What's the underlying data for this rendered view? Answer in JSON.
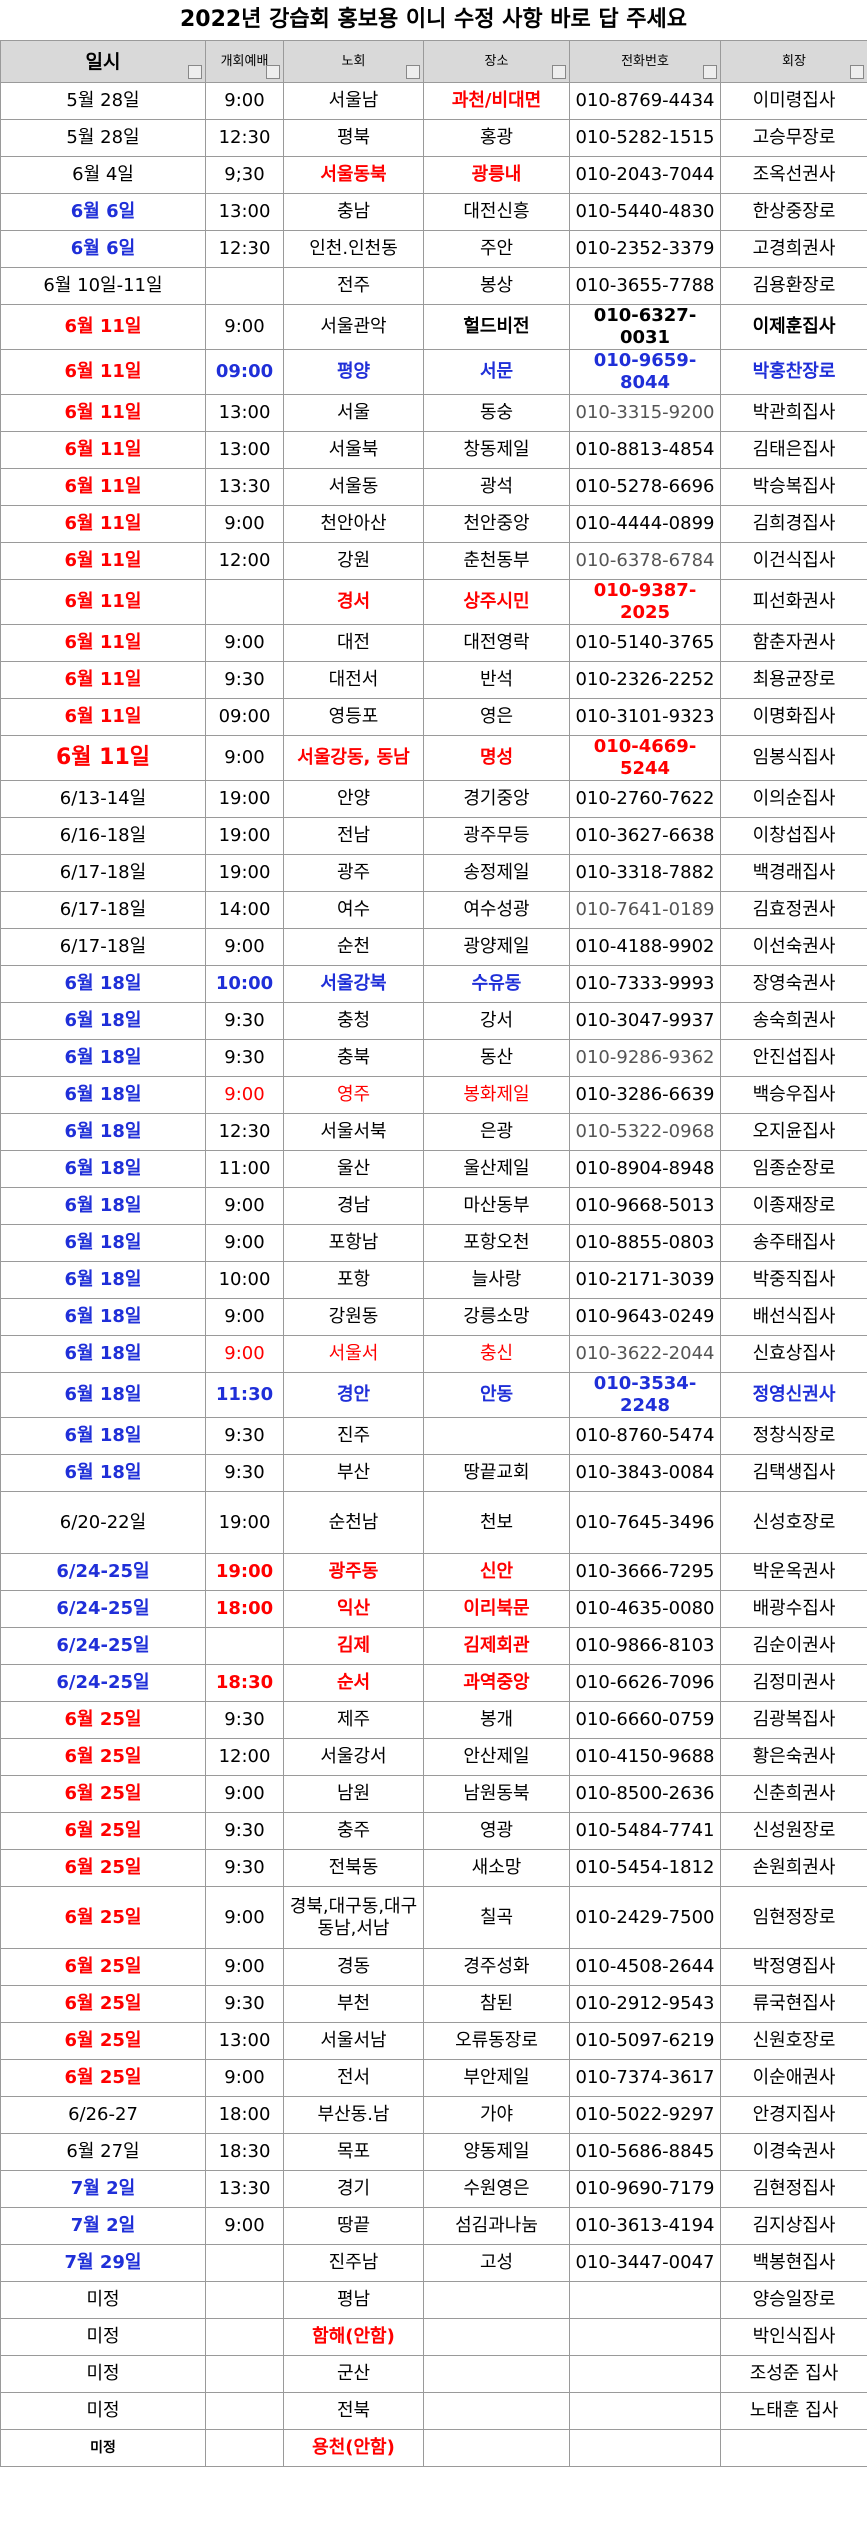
{
  "title": "2022년 강습회 홍보용 이니 수정 사항 바로 답 주세요",
  "table": {
    "header": [
      "일시",
      "개회예배",
      "노회",
      "장소",
      "전화번호",
      "회장"
    ],
    "rows": [
      [
        "5월 28일",
        "9:00",
        "서울남",
        "과천/비대면",
        "010-8769-4434",
        "이미령집사"
      ],
      [
        "5월 28일",
        "12:30",
        "평북",
        "홍광",
        "010-5282-1515",
        "고승무장로"
      ],
      [
        "6월 4일",
        "9;30",
        "서울동북",
        "광릉내",
        "010-2043-7044",
        "조옥선권사"
      ],
      [
        "6월 6일",
        "13:00",
        "충남",
        "대전신흥",
        "010-5440-4830",
        "한상중장로"
      ],
      [
        "6월 6일",
        "12:30",
        "인천.인천동",
        "주안",
        "010-2352-3379",
        "고경희권사"
      ],
      [
        "6월 10일-11일",
        null,
        "전주",
        "봉상",
        "010-3655-7788",
        "김용환장로"
      ],
      [
        "6월 11일",
        "9:00",
        "서울관악",
        "헐드비전",
        "010-6327-0031",
        "이제훈집사"
      ],
      [
        "6월 11일",
        "09:00",
        "평양",
        "서문",
        "010-9659-8044",
        "박홍찬장로"
      ],
      [
        "6월 11일",
        "13:00",
        "서울",
        "동숭",
        "010-3315-9200",
        "박관희집사"
      ],
      [
        "6월 11일",
        "13:00",
        "서울북",
        "창동제일",
        "010-8813-4854",
        "김태은집사"
      ],
      [
        "6월 11일",
        "13:30",
        "서울동",
        "광석",
        "010-5278-6696",
        "박승복집사"
      ],
      [
        "6월 11일",
        "9:00",
        "천안아산",
        "천안중앙",
        "010-4444-0899",
        "김희경집사"
      ],
      [
        "6월 11일",
        "12:00",
        "강원",
        "춘천동부",
        "010-6378-6784",
        "이건식집사"
      ],
      [
        "6월 11일",
        null,
        "경서",
        "상주시민",
        "010-9387-2025",
        "피선화권사"
      ],
      [
        "6월 11일",
        "9:00",
        "대전",
        "대전영락",
        "010-5140-3765",
        "함춘자권사"
      ],
      [
        "6월 11일",
        "9:30",
        "대전서",
        "반석",
        "010-2326-2252",
        "최용균장로"
      ],
      [
        "6월 11일",
        "09:00",
        "영등포",
        "영은",
        "010-3101-9323",
        "이명화집사"
      ],
      [
        "6월 11일",
        "9:00",
        "서울강동, 동남",
        "명성",
        "010-4669-5244",
        "임봉식집사"
      ],
      [
        "6/13-14일",
        "19:00",
        "안양",
        "경기중앙",
        "010-2760-7622",
        "이의순집사"
      ],
      [
        "6/16-18일",
        "19:00",
        "전남",
        "광주무등",
        "010-3627-6638",
        "이창섭집사"
      ],
      [
        "6/17-18일",
        "19:00",
        "광주",
        "송정제일",
        "010-3318-7882",
        "백경래집사"
      ],
      [
        "6/17-18일",
        "14:00",
        "여수",
        "여수성광",
        "010-7641-0189",
        "김효정권사"
      ],
      [
        "6/17-18일",
        "9:00",
        "순천",
        "광양제일",
        "010-4188-9902",
        "이선숙권사"
      ],
      [
        "6월 18일",
        "10:00",
        "서울강북",
        "수유동",
        "010-7333-9993",
        "장영숙권사"
      ],
      [
        "6월 18일",
        "9:30",
        "충청",
        "강서",
        "010-3047-9937",
        "송숙희권사"
      ],
      [
        "6월 18일",
        "9:30",
        "충북",
        "동산",
        "010-9286-9362",
        "안진섭집사"
      ],
      [
        "6월 18일",
        "9:00",
        "영주",
        "봉화제일",
        "010-3286-6639",
        "백승우집사"
      ],
      [
        "6월 18일",
        "12:30",
        "서울서북",
        "은광",
        "010-5322-0968",
        "오지윤집사"
      ],
      [
        "6월 18일",
        "11:00",
        "울산",
        "울산제일",
        "010-8904-8948",
        "임종순장로"
      ],
      [
        "6월 18일",
        "9:00",
        "경남",
        "마산동부",
        "010-9668-5013",
        "이종재장로"
      ],
      [
        "6월 18일",
        "9:00",
        "포항남",
        "포항오천",
        "010-8855-0803",
        "송주태집사"
      ],
      [
        "6월 18일",
        "10:00",
        "포항",
        "늘사랑",
        "010-2171-3039",
        "박중직집사"
      ],
      [
        "6월 18일",
        "9:00",
        "강원동",
        "강릉소망",
        "010-9643-0249",
        "배선식집사"
      ],
      [
        "6월 18일",
        "9:00",
        "서울서",
        "충신",
        "010-3622-2044",
        "신효상집사"
      ],
      [
        "6월 18일",
        "11:30",
        "경안",
        "안동",
        "010-3534-2248",
        "정영신권사"
      ],
      [
        "6월 18일",
        "9:30",
        "진주",
        null,
        "010-8760-5474",
        "정창식장로"
      ],
      [
        "6월 18일",
        "9:30",
        "부산",
        "땅끝교회",
        "010-3843-0084",
        "김택생집사"
      ],
      [
        "6/20-22일",
        "19:00",
        "순천남",
        "천보",
        "010-7645-3496",
        "신성호장로"
      ],
      [
        "6/24-25일",
        "19:00",
        "광주동",
        "신안",
        "010-3666-7295",
        "박운옥권사"
      ],
      [
        "6/24-25일",
        "18:00",
        "익산",
        "이리북문",
        "010-4635-0080",
        "배광수집사"
      ],
      [
        "6/24-25일",
        null,
        "김제",
        "김제회관",
        "010-9866-8103",
        "김순이권사"
      ],
      [
        "6/24-25일",
        "18:30",
        "순서",
        "과역중앙",
        "010-6626-7096",
        "김정미권사"
      ],
      [
        "6월 25일",
        "9:30",
        "제주",
        "봉개",
        "010-6660-0759",
        "김광복집사"
      ],
      [
        "6월 25일",
        "12:00",
        "서울강서",
        "안산제일",
        "010-4150-9688",
        "황은숙권사"
      ],
      [
        "6월 25일",
        "9:00",
        "남원",
        "남원동북",
        "010-8500-2636",
        "신춘희권사"
      ],
      [
        "6월 25일",
        "9:30",
        "충주",
        "영광",
        "010-5484-7741",
        "신성원장로"
      ],
      [
        "6월 25일",
        "9:30",
        "전북동",
        "새소망",
        "010-5454-1812",
        "손원희권사"
      ],
      [
        "6월 25일",
        "9:00",
        "경북,대구동,대구동남,서남",
        "칠곡",
        "010-2429-7500",
        "임현정장로"
      ],
      [
        "6월 25일",
        "9:00",
        "경동",
        "경주성화",
        "010-4508-2644",
        "박정영집사"
      ],
      [
        "6월 25일",
        "9:30",
        "부천",
        "참된",
        "010-2912-9543",
        "류국현집사"
      ],
      [
        "6월 25일",
        "13:00",
        "서울서남",
        "오류동장로",
        "010-5097-6219",
        "신원호장로"
      ],
      [
        "6월 25일",
        "9:00",
        "전서",
        "부안제일",
        "010-7374-3617",
        "이순애권사"
      ],
      [
        "6/26-27",
        "18:00",
        "부산동.남",
        "가야",
        "010-5022-9297",
        "안경지집사"
      ],
      [
        "6월 27일",
        "18:30",
        "목포",
        "양동제일",
        "010-5686-8845",
        "이경숙권사"
      ],
      [
        "7월 2일",
        "13:30",
        "경기",
        "수원영은",
        "010-9690-7179",
        "김현정집사"
      ],
      [
        "7월 2일",
        "9:00",
        "땅끝",
        "섬김과나눔",
        "010-3613-4194",
        "김지상집사"
      ],
      [
        "7월 29일",
        null,
        "진주남",
        "고성",
        "010-3447-0047",
        "백봉현집사"
      ],
      [
        "미정",
        null,
        "평남",
        null,
        null,
        "양승일장로"
      ],
      [
        "미정",
        null,
        "함해(안함)",
        null,
        null,
        "박인식집사"
      ],
      [
        "미정",
        null,
        "군산",
        null,
        null,
        "조성준 집사"
      ],
      [
        "미정",
        null,
        "전북",
        null,
        null,
        "노태훈 집사"
      ],
      [
        "미정",
        null,
        "용천(안함)",
        null,
        null,
        null
      ]
    ]
  }
}
